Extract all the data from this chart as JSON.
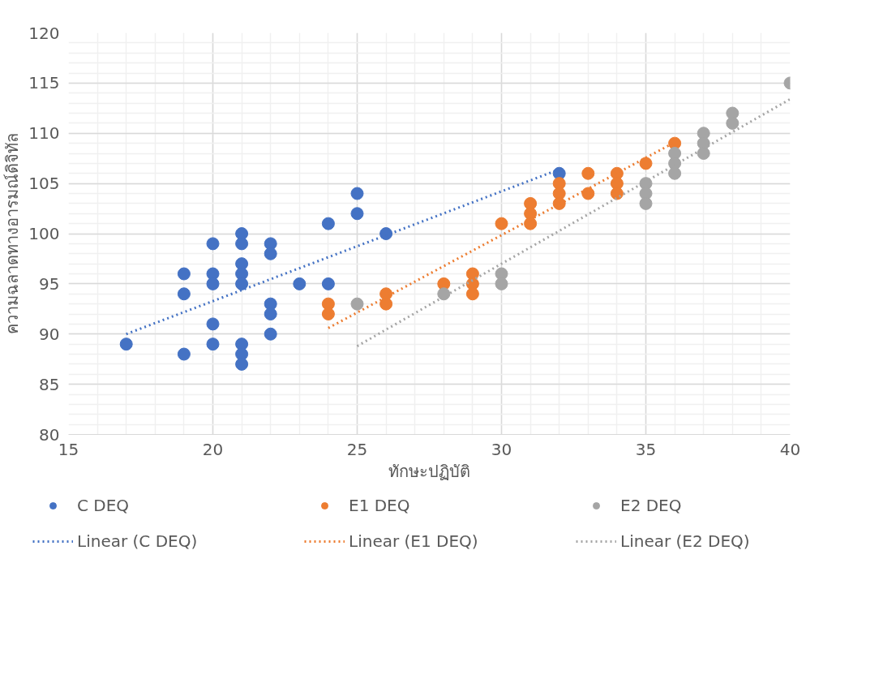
{
  "chart_data": {
    "type": "scatter",
    "xlabel": "ทักษะปฏิบัติ",
    "ylabel": "ความฉลาดทางอารมณ์ดิจิทัล",
    "xlim": [
      15,
      40
    ],
    "ylim": [
      80,
      120
    ],
    "xticks": [
      15,
      20,
      25,
      30,
      35,
      40
    ],
    "yticks": [
      80,
      85,
      90,
      95,
      100,
      105,
      110,
      115,
      120
    ],
    "grid": true,
    "legend": "bottom",
    "series": [
      {
        "name": "C DEQ",
        "marker": "circle",
        "color": "#4472c4",
        "x": [
          17,
          19,
          19,
          19,
          20,
          20,
          20,
          20,
          20,
          21,
          21,
          21,
          21,
          21,
          21,
          21,
          21,
          22,
          22,
          22,
          22,
          22,
          23,
          24,
          24,
          25,
          25,
          26,
          32
        ],
        "values": [
          89,
          96,
          94,
          88,
          99,
          96,
          95,
          91,
          89,
          100,
          99,
          97,
          96,
          95,
          89,
          88,
          87,
          99,
          98,
          93,
          92,
          90,
          95,
          101,
          95,
          104,
          102,
          100,
          106
        ]
      },
      {
        "name": "E1 DEQ",
        "marker": "circle",
        "color": "#ed7d31",
        "x": [
          24,
          24,
          26,
          26,
          28,
          29,
          29,
          29,
          30,
          31,
          31,
          31,
          32,
          32,
          32,
          33,
          33,
          34,
          34,
          34,
          35,
          36
        ],
        "values": [
          93,
          92,
          94,
          93,
          95,
          96,
          95,
          94,
          101,
          103,
          102,
          101,
          105,
          104,
          103,
          106,
          104,
          106,
          105,
          104,
          107,
          109
        ]
      },
      {
        "name": "E2 DEQ",
        "marker": "circle",
        "color": "#a5a5a5",
        "x": [
          25,
          28,
          30,
          30,
          35,
          35,
          35,
          36,
          36,
          36,
          37,
          37,
          37,
          38,
          38,
          40
        ],
        "values": [
          93,
          94,
          96,
          95,
          105,
          104,
          103,
          108,
          107,
          106,
          110,
          109,
          108,
          112,
          111,
          115
        ]
      },
      {
        "name": "Linear (C DEQ)",
        "type": "line",
        "line_style": "dotted",
        "marker": "none",
        "color": "#4472c4",
        "x": [
          17,
          32
        ],
        "values": [
          90.0,
          106.4
        ]
      },
      {
        "name": "Linear (E1 DEQ)",
        "type": "line",
        "line_style": "dotted",
        "marker": "none",
        "color": "#ed7d31",
        "x": [
          24,
          36
        ],
        "values": [
          90.6,
          109.1
        ]
      },
      {
        "name": "Linear (E2 DEQ)",
        "type": "line",
        "line_style": "dotted",
        "marker": "none",
        "color": "#a5a5a5",
        "x": [
          25,
          40
        ],
        "values": [
          88.8,
          113.4
        ]
      }
    ]
  }
}
